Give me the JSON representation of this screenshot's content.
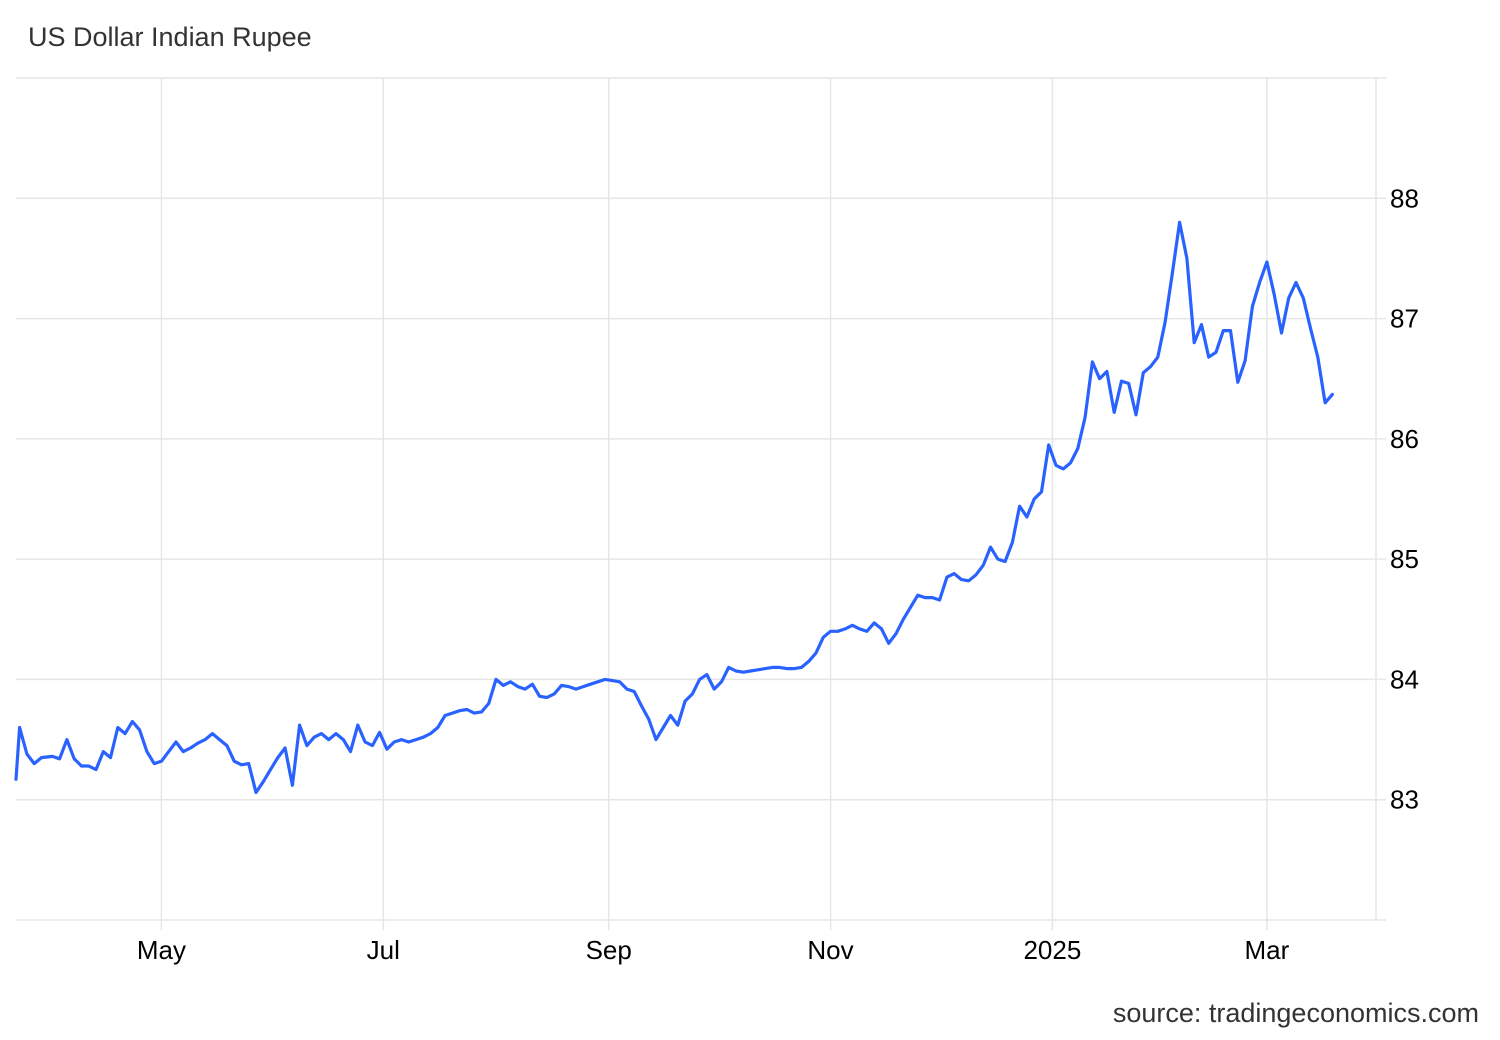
{
  "chart_data": {
    "type": "line",
    "title": "US Dollar Indian Rupee",
    "source": "source: tradingeconomics.com",
    "xlabel": "",
    "ylabel": "",
    "x_ticks": [
      {
        "label": "May",
        "date": "2024-05-01"
      },
      {
        "label": "Jul",
        "date": "2024-07-01"
      },
      {
        "label": "Sep",
        "date": "2024-09-01"
      },
      {
        "label": "Nov",
        "date": "2024-11-01"
      },
      {
        "label": "2025",
        "date": "2025-01-01"
      },
      {
        "label": "Mar",
        "date": "2025-03-01"
      }
    ],
    "y_ticks": [
      {
        "label": "83",
        "value": 83
      },
      {
        "label": "84",
        "value": 84
      },
      {
        "label": "85",
        "value": 85
      },
      {
        "label": "86",
        "value": 86
      },
      {
        "label": "87",
        "value": 87
      },
      {
        "label": "88",
        "value": 88
      }
    ],
    "xlim": [
      "2024-03-22",
      "2025-03-31"
    ],
    "ylim": [
      82.0,
      89.0
    ],
    "grid": true,
    "legend": "none",
    "colors": {
      "line": "#2962ff",
      "grid": "#e6e6e6",
      "text": "#333333"
    },
    "series": [
      {
        "x": [
          "2024-03-22",
          "2024-03-23",
          "2024-03-25",
          "2024-03-27",
          "2024-03-29",
          "2024-04-01",
          "2024-04-03",
          "2024-04-05",
          "2024-04-07",
          "2024-04-09",
          "2024-04-11",
          "2024-04-13",
          "2024-04-15",
          "2024-04-17",
          "2024-04-19",
          "2024-04-21",
          "2024-04-23",
          "2024-04-25",
          "2024-04-27",
          "2024-04-29",
          "2024-05-01",
          "2024-05-03",
          "2024-05-05",
          "2024-05-07",
          "2024-05-09",
          "2024-05-11",
          "2024-05-13",
          "2024-05-15",
          "2024-05-17",
          "2024-05-19",
          "2024-05-21",
          "2024-05-23",
          "2024-05-25",
          "2024-05-27",
          "2024-05-29",
          "2024-05-31",
          "2024-06-02",
          "2024-06-04",
          "2024-06-06",
          "2024-06-08",
          "2024-06-10",
          "2024-06-12",
          "2024-06-14",
          "2024-06-16",
          "2024-06-18",
          "2024-06-20",
          "2024-06-22",
          "2024-06-24",
          "2024-06-26",
          "2024-06-28",
          "2024-06-30",
          "2024-07-02",
          "2024-07-04",
          "2024-07-06",
          "2024-07-08",
          "2024-07-10",
          "2024-07-12",
          "2024-07-14",
          "2024-07-16",
          "2024-07-18",
          "2024-07-20",
          "2024-07-22",
          "2024-07-24",
          "2024-07-26",
          "2024-07-28",
          "2024-07-30",
          "2024-08-01",
          "2024-08-03",
          "2024-08-05",
          "2024-08-07",
          "2024-08-09",
          "2024-08-11",
          "2024-08-13",
          "2024-08-15",
          "2024-08-17",
          "2024-08-19",
          "2024-08-21",
          "2024-08-23",
          "2024-08-25",
          "2024-08-27",
          "2024-08-29",
          "2024-08-31",
          "2024-09-02",
          "2024-09-04",
          "2024-09-06",
          "2024-09-08",
          "2024-09-10",
          "2024-09-12",
          "2024-09-14",
          "2024-09-16",
          "2024-09-18",
          "2024-09-20",
          "2024-09-22",
          "2024-09-24",
          "2024-09-26",
          "2024-09-28",
          "2024-09-30",
          "2024-10-02",
          "2024-10-04",
          "2024-10-06",
          "2024-10-08",
          "2024-10-10",
          "2024-10-12",
          "2024-10-14",
          "2024-10-16",
          "2024-10-18",
          "2024-10-20",
          "2024-10-22",
          "2024-10-24",
          "2024-10-26",
          "2024-10-28",
          "2024-10-30",
          "2024-11-01",
          "2024-11-03",
          "2024-11-05",
          "2024-11-07",
          "2024-11-09",
          "2024-11-11",
          "2024-11-13",
          "2024-11-15",
          "2024-11-17",
          "2024-11-19",
          "2024-11-21",
          "2024-11-23",
          "2024-11-25",
          "2024-11-27",
          "2024-11-29",
          "2024-12-01",
          "2024-12-03",
          "2024-12-05",
          "2024-12-07",
          "2024-12-09",
          "2024-12-11",
          "2024-12-13",
          "2024-12-15",
          "2024-12-17",
          "2024-12-19",
          "2024-12-21",
          "2024-12-23",
          "2024-12-25",
          "2024-12-27",
          "2024-12-29",
          "2024-12-31",
          "2025-01-02",
          "2025-01-04",
          "2025-01-06",
          "2025-01-08",
          "2025-01-10",
          "2025-01-12",
          "2025-01-14",
          "2025-01-16",
          "2025-01-18",
          "2025-01-20",
          "2025-01-22",
          "2025-01-24",
          "2025-01-26",
          "2025-01-28",
          "2025-01-30",
          "2025-02-01",
          "2025-02-03",
          "2025-02-05",
          "2025-02-07",
          "2025-02-09",
          "2025-02-11",
          "2025-02-13",
          "2025-02-15",
          "2025-02-17",
          "2025-02-19",
          "2025-02-21",
          "2025-02-23",
          "2025-02-25",
          "2025-02-27",
          "2025-03-01",
          "2025-03-03",
          "2025-03-05",
          "2025-03-07",
          "2025-03-09",
          "2025-03-11",
          "2025-03-13",
          "2025-03-15",
          "2025-03-17",
          "2025-03-19"
        ],
        "values": [
          83.17,
          83.6,
          83.38,
          83.3,
          83.35,
          83.36,
          83.34,
          83.5,
          83.34,
          83.28,
          83.28,
          83.25,
          83.4,
          83.35,
          83.6,
          83.55,
          83.65,
          83.58,
          83.4,
          83.3,
          83.32,
          83.4,
          83.48,
          83.4,
          83.43,
          83.47,
          83.5,
          83.55,
          83.5,
          83.45,
          83.32,
          83.29,
          83.3,
          83.06,
          83.15,
          83.25,
          83.35,
          83.43,
          83.12,
          83.62,
          83.45,
          83.52,
          83.55,
          83.5,
          83.55,
          83.5,
          83.4,
          83.62,
          83.48,
          83.45,
          83.56,
          83.42,
          83.48,
          83.5,
          83.48,
          83.5,
          83.52,
          83.55,
          83.6,
          83.7,
          83.72,
          83.74,
          83.75,
          83.72,
          83.73,
          83.8,
          84.0,
          83.95,
          83.98,
          83.94,
          83.92,
          83.96,
          83.86,
          83.85,
          83.88,
          83.95,
          83.94,
          83.92,
          83.94,
          83.96,
          83.98,
          84.0,
          83.99,
          83.98,
          83.92,
          83.9,
          83.78,
          83.67,
          83.5,
          83.6,
          83.7,
          83.62,
          83.82,
          83.88,
          84.0,
          84.04,
          83.92,
          83.98,
          84.1,
          84.07,
          84.06,
          84.07,
          84.08,
          84.09,
          84.1,
          84.1,
          84.09,
          84.09,
          84.1,
          84.15,
          84.22,
          84.35,
          84.4,
          84.4,
          84.42,
          84.45,
          84.42,
          84.4,
          84.47,
          84.42,
          84.3,
          84.38,
          84.5,
          84.6,
          84.7,
          84.68,
          84.68,
          84.66,
          84.85,
          84.88,
          84.83,
          84.82,
          84.87,
          84.95,
          85.1,
          85.0,
          84.98,
          85.14,
          85.44,
          85.35,
          85.5,
          85.56,
          85.95,
          85.78,
          85.75,
          85.8,
          85.92,
          86.18,
          86.64,
          86.5,
          86.56,
          86.22,
          86.48,
          86.46,
          86.2,
          86.55,
          86.6,
          86.68,
          86.97,
          87.38,
          87.8,
          87.5,
          86.8,
          86.95,
          86.68,
          86.72,
          86.9,
          86.9,
          86.47,
          86.65,
          87.1,
          87.3,
          87.47,
          87.2,
          86.88,
          87.17,
          87.3,
          87.17,
          86.92,
          86.68,
          86.3,
          86.37
        ]
      }
    ]
  }
}
